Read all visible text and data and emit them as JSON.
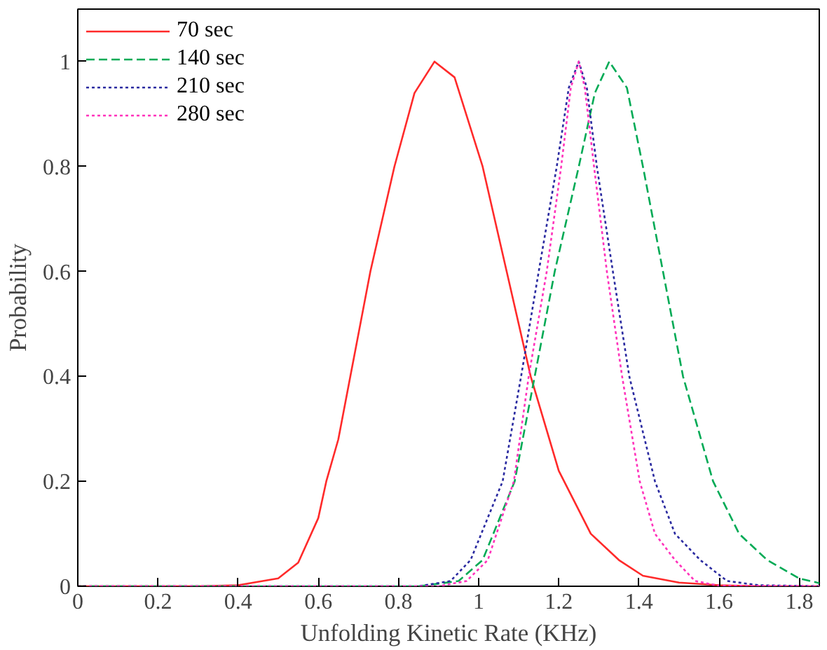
{
  "chart_data": {
    "type": "line",
    "xlabel": "Unfolding Kinetic Rate (KHz)",
    "ylabel": "Probability",
    "xlim": [
      0,
      1.85
    ],
    "ylim": [
      0,
      1.1
    ],
    "xticks": [
      0,
      0.2,
      0.4,
      0.6,
      0.8,
      1,
      1.2,
      1.4,
      1.6,
      1.8
    ],
    "yticks": [
      0,
      0.2,
      0.4,
      0.6,
      0.8,
      1
    ],
    "grid": false,
    "legend": "top left",
    "marker": "none",
    "series": [
      {
        "name": "70 sec",
        "color": "#ff2a2a",
        "line_style": "solid",
        "x": [
          0,
          0.3,
          0.4,
          0.5,
          0.55,
          0.6,
          0.62,
          0.65,
          0.68,
          0.73,
          0.79,
          0.84,
          0.89,
          0.94,
          1.01,
          1.07,
          1.13,
          1.2,
          1.28,
          1.35,
          1.41,
          1.5,
          1.6,
          1.7,
          1.85
        ],
        "values": [
          0,
          0,
          0.002,
          0.015,
          0.045,
          0.13,
          0.2,
          0.28,
          0.4,
          0.6,
          0.8,
          0.94,
          1,
          0.97,
          0.8,
          0.6,
          0.4,
          0.22,
          0.1,
          0.05,
          0.02,
          0.007,
          0.002,
          0,
          0
        ]
      },
      {
        "name": "140 sec",
        "color": "#00aa55",
        "line_style": "dashed",
        "x": [
          0,
          0.85,
          0.95,
          1.01,
          1.09,
          1.14,
          1.19,
          1.25,
          1.29,
          1.326,
          1.37,
          1.41,
          1.46,
          1.51,
          1.585,
          1.65,
          1.72,
          1.8,
          1.85
        ],
        "values": [
          0,
          0,
          0.01,
          0.05,
          0.2,
          0.4,
          0.6,
          0.8,
          0.94,
          1,
          0.95,
          0.8,
          0.6,
          0.4,
          0.2,
          0.1,
          0.05,
          0.015,
          0.006
        ]
      },
      {
        "name": "210 sec",
        "color": "#2a2aa0",
        "line_style": "dotted",
        "x": [
          0,
          0.85,
          0.93,
          0.98,
          1.06,
          1.106,
          1.15,
          1.195,
          1.225,
          1.25,
          1.27,
          1.295,
          1.335,
          1.376,
          1.44,
          1.49,
          1.553,
          1.62,
          1.7,
          1.85
        ],
        "values": [
          0,
          0,
          0.01,
          0.05,
          0.2,
          0.4,
          0.6,
          0.8,
          0.95,
          1,
          0.95,
          0.8,
          0.6,
          0.4,
          0.2,
          0.1,
          0.05,
          0.01,
          0.002,
          0
        ]
      },
      {
        "name": "280 sec",
        "color": "#ff33bb",
        "line_style": "dotted",
        "x": [
          0,
          0.9,
          0.97,
          1.023,
          1.088,
          1.125,
          1.17,
          1.206,
          1.23,
          1.25,
          1.265,
          1.288,
          1.32,
          1.358,
          1.402,
          1.44,
          1.49,
          1.54,
          1.6,
          1.85
        ],
        "values": [
          0,
          0,
          0.01,
          0.05,
          0.2,
          0.4,
          0.6,
          0.8,
          0.95,
          1,
          0.95,
          0.8,
          0.6,
          0.4,
          0.2,
          0.1,
          0.05,
          0.01,
          0.001,
          0
        ]
      }
    ]
  }
}
